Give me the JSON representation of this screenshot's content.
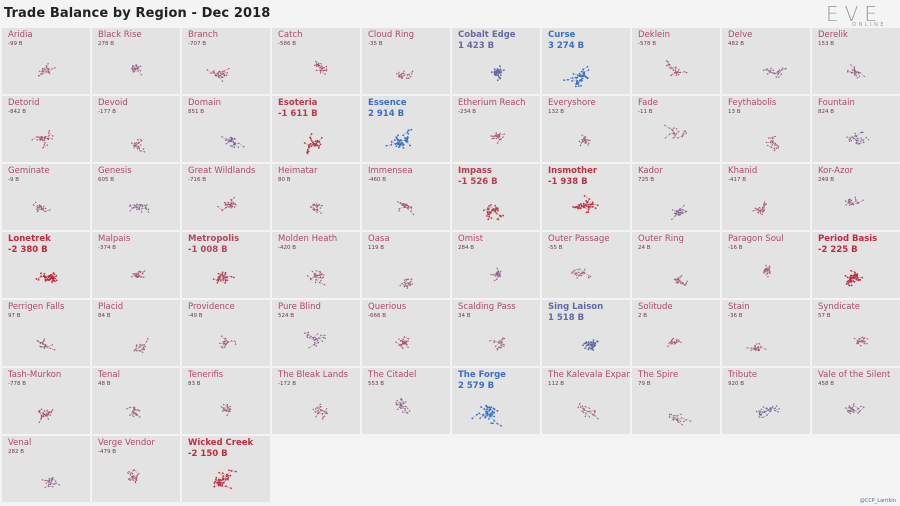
{
  "title": "Trade Balance by Region - Dec 2018",
  "logo": {
    "text": "EVE",
    "subtext": "ONLINE"
  },
  "credit": "@CCP_Larrikin",
  "colors": {
    "negative": "#c0263a",
    "positive": "#3a6fc4",
    "neutral_name": "#b04a6a",
    "small_value": "#6b3a5a"
  },
  "chart_data": {
    "type": "small-multiples",
    "title": "Trade Balance by Region - Dec 2018",
    "unit": "B ISK",
    "regions": [
      {
        "name": "Aridia",
        "value": "-99 B",
        "num": -99
      },
      {
        "name": "Black Rise",
        "value": "278 B",
        "num": 278
      },
      {
        "name": "Branch",
        "value": "-707 B",
        "num": -707
      },
      {
        "name": "Catch",
        "value": "-586 B",
        "num": -586
      },
      {
        "name": "Cloud Ring",
        "value": "-35 B",
        "num": -35
      },
      {
        "name": "Cobalt Edge",
        "value": "1 423 B",
        "num": 1423
      },
      {
        "name": "Curse",
        "value": "3 274 B",
        "num": 3274
      },
      {
        "name": "Deklein",
        "value": "-578 B",
        "num": -578
      },
      {
        "name": "Delve",
        "value": "482 B",
        "num": 482
      },
      {
        "name": "Derelik",
        "value": "153 B",
        "num": 153
      },
      {
        "name": "Detorid",
        "value": "-842 B",
        "num": -842
      },
      {
        "name": "Devoid",
        "value": "-177 B",
        "num": -177
      },
      {
        "name": "Domain",
        "value": "851 B",
        "num": 851
      },
      {
        "name": "Esoteria",
        "value": "-1 611 B",
        "num": -1611
      },
      {
        "name": "Essence",
        "value": "2 914 B",
        "num": 2914
      },
      {
        "name": "Etherium Reach",
        "value": "-234 B",
        "num": -234
      },
      {
        "name": "Everyshore",
        "value": "132 B",
        "num": 132
      },
      {
        "name": "Fade",
        "value": "-11 B",
        "num": -11
      },
      {
        "name": "Feythabolis",
        "value": "13 B",
        "num": 13
      },
      {
        "name": "Fountain",
        "value": "824 B",
        "num": 824
      },
      {
        "name": "Geminate",
        "value": "-9 B",
        "num": -9
      },
      {
        "name": "Genesis",
        "value": "605 B",
        "num": 605
      },
      {
        "name": "Great Wildlands",
        "value": "-716 B",
        "num": -716
      },
      {
        "name": "Heimatar",
        "value": "80 B",
        "num": 80
      },
      {
        "name": "Immensea",
        "value": "-460 B",
        "num": -460
      },
      {
        "name": "Impass",
        "value": "-1 526 B",
        "num": -1526
      },
      {
        "name": "Insmother",
        "value": "-1 938 B",
        "num": -1938
      },
      {
        "name": "Kador",
        "value": "725 B",
        "num": 725
      },
      {
        "name": "Khanid",
        "value": "-417 B",
        "num": -417
      },
      {
        "name": "Kor-Azor",
        "value": "249 B",
        "num": 249
      },
      {
        "name": "Lonetrek",
        "value": "-2 380 B",
        "num": -2380
      },
      {
        "name": "Malpais",
        "value": "-374 B",
        "num": -374
      },
      {
        "name": "Metropolis",
        "value": "-1 008 B",
        "num": -1008
      },
      {
        "name": "Molden Heath",
        "value": "-420 B",
        "num": -420
      },
      {
        "name": "Oasa",
        "value": "119 B",
        "num": 119
      },
      {
        "name": "Omist",
        "value": "284 B",
        "num": 284
      },
      {
        "name": "Outer Passage",
        "value": "-55 B",
        "num": -55
      },
      {
        "name": "Outer Ring",
        "value": "24 B",
        "num": 24
      },
      {
        "name": "Paragon Soul",
        "value": "-16 B",
        "num": -16
      },
      {
        "name": "Period Basis",
        "value": "-2 225 B",
        "num": -2225
      },
      {
        "name": "Perrigen Falls",
        "value": "97 B",
        "num": 97
      },
      {
        "name": "Placid",
        "value": "84 B",
        "num": 84
      },
      {
        "name": "Providence",
        "value": "-49 B",
        "num": -49
      },
      {
        "name": "Pure Blind",
        "value": "524 B",
        "num": 524
      },
      {
        "name": "Querious",
        "value": "-666 B",
        "num": -666
      },
      {
        "name": "Scalding Pass",
        "value": "34 B",
        "num": 34
      },
      {
        "name": "Sing Laison",
        "value": "1 518 B",
        "num": 1518
      },
      {
        "name": "Solitude",
        "value": "2 B",
        "num": 2
      },
      {
        "name": "Stain",
        "value": "-36 B",
        "num": -36
      },
      {
        "name": "Syndicate",
        "value": "57 B",
        "num": 57
      },
      {
        "name": "Tash-Murkon",
        "value": "-778 B",
        "num": -778
      },
      {
        "name": "Tenal",
        "value": "48 B",
        "num": 48
      },
      {
        "name": "Tenerifis",
        "value": "83 B",
        "num": 83
      },
      {
        "name": "The Bleak Lands",
        "value": "-172 B",
        "num": -172
      },
      {
        "name": "The Citadel",
        "value": "553 B",
        "num": 553
      },
      {
        "name": "The Forge",
        "value": "2 579 B",
        "num": 2579
      },
      {
        "name": "The Kalevala Expanse",
        "value": "112 B",
        "num": 112
      },
      {
        "name": "The Spire",
        "value": "79 B",
        "num": 79
      },
      {
        "name": "Tribute",
        "value": "920 B",
        "num": 920
      },
      {
        "name": "Vale of the Silent",
        "value": "458 B",
        "num": 458
      },
      {
        "name": "Venal",
        "value": "282 B",
        "num": 282
      },
      {
        "name": "Verge Vendor",
        "value": "-479 B",
        "num": -479
      },
      {
        "name": "Wicked Creek",
        "value": "-2 150 B",
        "num": -2150
      }
    ]
  }
}
